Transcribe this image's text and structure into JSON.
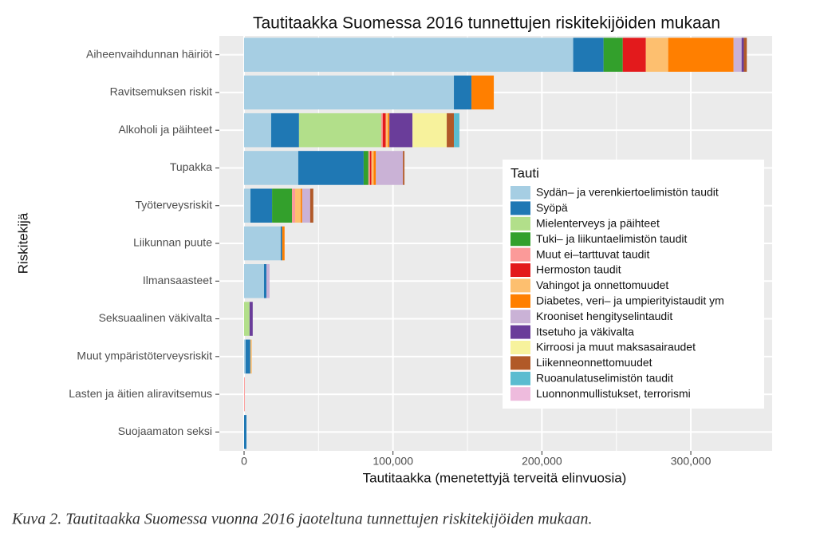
{
  "chart_data": {
    "type": "stacked-barh",
    "title": "Tautitaakka Suomessa 2016 tunnettujen riskitekijöiden mukaan",
    "x_label": "Tautitaakka (menetettyjä terveitä elinvuosia)",
    "y_label": "Riskitekijä",
    "legend_title": "Tauti",
    "legend_position": "right",
    "grid": true,
    "categories": [
      "Aiheenvaihdunnan häiriöt",
      "Ravitsemuksen riskit",
      "Alkoholi ja päihteet",
      "Tupakka",
      "Työterveysriskit",
      "Liikunnan puute",
      "Ilmansaasteet",
      "Seksuaalinen väkivalta",
      "Muut ympäristöterveysriskit",
      "Lasten ja äitien aliravitsemus",
      "Suojaamaton seksi"
    ],
    "xlim": [
      -16600,
      354600
    ],
    "xticks": [
      0,
      {
        "value": 100000,
        "label": "100,000"
      },
      {
        "value": 200000,
        "label": "200,000"
      },
      {
        "value": 300000,
        "label": "300,000"
      }
    ],
    "series": [
      {
        "name": "Sydän– ja verenkiertoelimistön taudit",
        "color": "#a6cee3",
        "values": [
          221000,
          140900,
          18200,
          36400,
          4300,
          24600,
          13400,
          0,
          1000,
          0,
          0
        ]
      },
      {
        "name": "Syöpä",
        "color": "#1f78b4",
        "values": [
          20400,
          11800,
          18700,
          43900,
          14500,
          1000,
          1600,
          0,
          3200,
          0,
          1600
        ]
      },
      {
        "name": "Mielenterveys ja päihteet",
        "color": "#b2df8a",
        "values": [
          0,
          0,
          55200,
          0,
          0,
          0,
          0,
          3700,
          0,
          0,
          0
        ]
      },
      {
        "name": "Tuki– ja liikuntaelimistön taudit",
        "color": "#33a02c",
        "values": [
          12900,
          0,
          0,
          3200,
          13400,
          0,
          0,
          0,
          0,
          0,
          0
        ]
      },
      {
        "name": "Muut ei–tarttuvat taudit",
        "color": "#fb9a99",
        "values": [
          0,
          0,
          1000,
          1000,
          2100,
          0,
          0,
          0,
          0,
          500,
          0
        ]
      },
      {
        "name": "Hermoston taudit",
        "color": "#e31a1c",
        "values": [
          15500,
          0,
          2000,
          1000,
          0,
          0,
          0,
          0,
          0,
          0,
          0
        ]
      },
      {
        "name": "Vahingot ja onnettomuudet",
        "color": "#fdbf6f",
        "values": [
          15000,
          0,
          1500,
          1500,
          3700,
          0,
          0,
          0,
          1000,
          0,
          0
        ]
      },
      {
        "name": "Diabetes, veri– ja umpierityistaudit ym",
        "color": "#ff7f00",
        "values": [
          43900,
          15000,
          1000,
          1500,
          1000,
          1600,
          0,
          0,
          0,
          0,
          0
        ]
      },
      {
        "name": "Krooniset hengityselintaudit",
        "color": "#cab2d6",
        "values": [
          5400,
          0,
          0,
          18200,
          5400,
          0,
          2100,
          0,
          0,
          0,
          0
        ]
      },
      {
        "name": "Itsetuho ja väkivalta",
        "color": "#6a3d9a",
        "values": [
          1500,
          0,
          15500,
          0,
          0,
          0,
          0,
          2100,
          0,
          0,
          0
        ]
      },
      {
        "name": "Kirroosi ja muut maksasairaudet",
        "color": "#f7f29c",
        "values": [
          0,
          0,
          23000,
          0,
          0,
          0,
          0,
          0,
          0,
          0,
          0
        ]
      },
      {
        "name": "Liikenneonnettomuudet",
        "color": "#b15928",
        "values": [
          2000,
          0,
          4800,
          1000,
          2100,
          0,
          0,
          0,
          0,
          0,
          0
        ]
      },
      {
        "name": "Ruoanulatuselimistön taudit",
        "color": "#5bbcd0",
        "values": [
          0,
          0,
          3700,
          0,
          0,
          0,
          0,
          0,
          0,
          0,
          0
        ]
      },
      {
        "name": "Luonnonmullistukset, terrorismi",
        "color": "#eebbdd",
        "values": [
          0,
          0,
          0,
          0,
          0,
          0,
          0,
          0,
          0,
          0,
          0
        ]
      }
    ],
    "caption": "Kuva 2. Tautitaakka Suomessa vuonna 2016 jaoteltuna tunnettujen riskitekijöiden mukaan."
  }
}
